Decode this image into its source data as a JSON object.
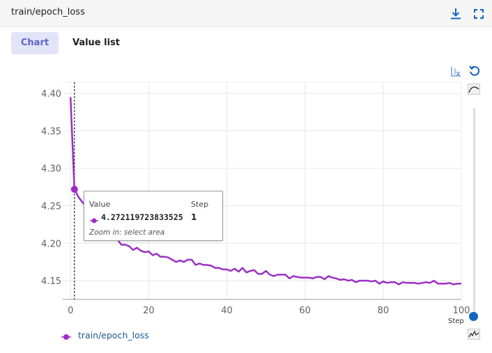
{
  "card": {
    "title": "train/epoch_loss"
  },
  "tabs": [
    {
      "label": "Chart",
      "active": true
    },
    {
      "label": "Value list",
      "active": false
    }
  ],
  "toolbar": {
    "download_icon": "download-icon",
    "fullscreen_icon": "fullscreen-icon"
  },
  "controls": {
    "log_x_icon": "log-scale-x-icon",
    "reset_icon": "reset-zoom-icon",
    "smoothing_top_icon": "smoothing-curve-icon",
    "smoothing_bottom_icon": "raw-curve-icon",
    "smoothing_level": 0
  },
  "tooltip": {
    "value_header": "Value",
    "step_header": "Step",
    "value": "4.272119723833525",
    "step": "1",
    "hint": "Zoom in: select area"
  },
  "legend": {
    "label": "train/epoch_loss"
  },
  "colors": {
    "series": "#9b2fc4",
    "accent": "#1565c0",
    "tab_active_bg": "#e3e4f8"
  },
  "chart_data": {
    "type": "line",
    "title": "",
    "xlabel": "Step",
    "ylabel": "",
    "xlim": [
      -2,
      100
    ],
    "ylim": [
      4.125,
      4.415
    ],
    "x_ticks": [
      0,
      20,
      40,
      60,
      80,
      100
    ],
    "y_ticks": [
      4.15,
      4.2,
      4.25,
      4.3,
      4.35,
      4.4
    ],
    "grid": true,
    "legend_position": "bottom-left",
    "hover_step": 1,
    "series": [
      {
        "name": "train/epoch_loss",
        "x": [
          0,
          1,
          2,
          3,
          4,
          5,
          6,
          7,
          8,
          9,
          10,
          11,
          12,
          13,
          14,
          15,
          16,
          17,
          18,
          19,
          20,
          21,
          22,
          23,
          24,
          25,
          26,
          27,
          28,
          29,
          30,
          31,
          32,
          33,
          34,
          35,
          36,
          37,
          38,
          39,
          40,
          41,
          42,
          43,
          44,
          45,
          46,
          47,
          48,
          49,
          50,
          51,
          52,
          53,
          54,
          55,
          56,
          57,
          58,
          59,
          60,
          61,
          62,
          63,
          64,
          65,
          66,
          67,
          68,
          69,
          70,
          71,
          72,
          73,
          74,
          75,
          76,
          77,
          78,
          79,
          80,
          81,
          82,
          83,
          84,
          85,
          86,
          87,
          88,
          89,
          90,
          91,
          92,
          93,
          94,
          95,
          96,
          97,
          98,
          99,
          100
        ],
        "y": [
          4.395,
          4.272,
          4.262,
          4.255,
          4.249,
          4.243,
          4.237,
          4.232,
          4.226,
          4.221,
          4.216,
          4.212,
          4.205,
          4.198,
          4.198,
          4.196,
          4.191,
          4.194,
          4.19,
          4.188,
          4.189,
          4.184,
          4.186,
          4.182,
          4.182,
          4.181,
          4.178,
          4.175,
          4.177,
          4.175,
          4.178,
          4.178,
          4.171,
          4.173,
          4.171,
          4.171,
          4.17,
          4.167,
          4.167,
          4.165,
          4.165,
          4.163,
          4.166,
          4.162,
          4.167,
          4.161,
          4.163,
          4.164,
          4.159,
          4.159,
          4.163,
          4.158,
          4.156,
          4.158,
          4.158,
          4.158,
          4.153,
          4.156,
          4.155,
          4.154,
          4.154,
          4.154,
          4.153,
          4.155,
          4.155,
          4.152,
          4.156,
          4.154,
          4.153,
          4.151,
          4.152,
          4.15,
          4.151,
          4.148,
          4.15,
          4.15,
          4.15,
          4.149,
          4.15,
          4.146,
          4.149,
          4.147,
          4.148,
          4.148,
          4.145,
          4.148,
          4.147,
          4.147,
          4.147,
          4.146,
          4.147,
          4.148,
          4.147,
          4.15,
          4.146,
          4.146,
          4.146,
          4.147,
          4.145,
          4.146,
          4.146
        ]
      }
    ]
  }
}
